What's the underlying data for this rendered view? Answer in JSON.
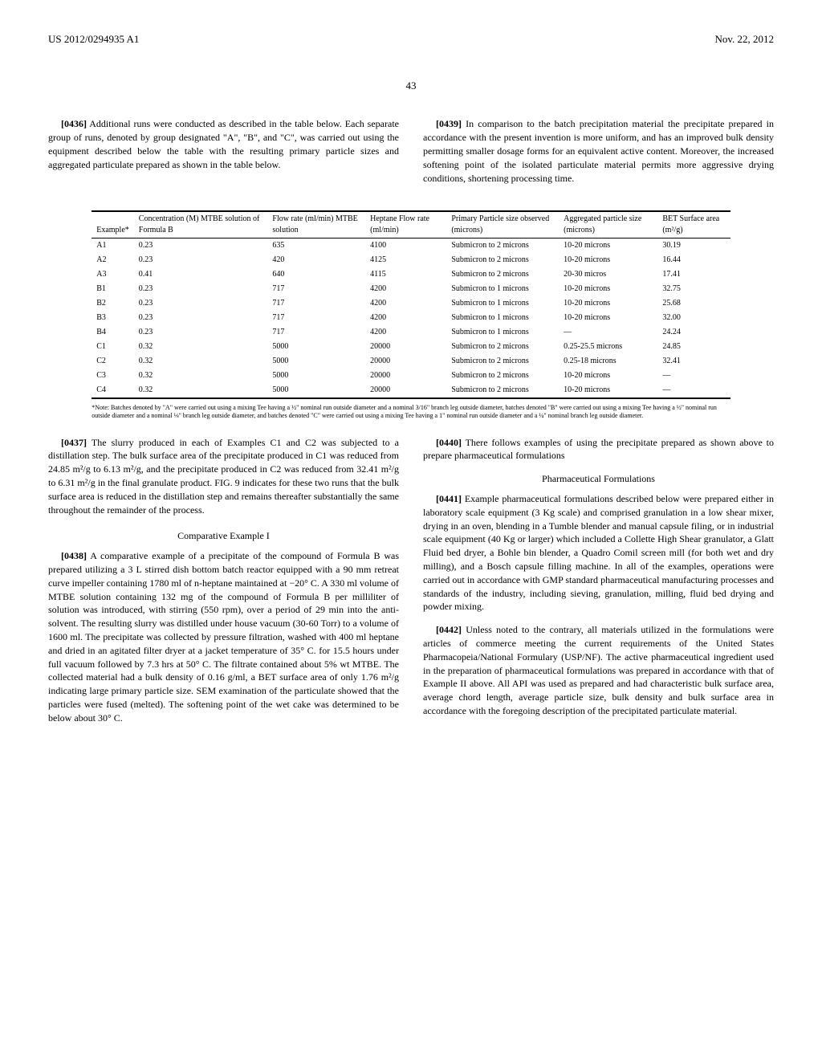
{
  "header": {
    "left": "US 2012/0294935 A1",
    "right": "Nov. 22, 2012"
  },
  "pageNumber": "43",
  "paragraphs": {
    "p0436": {
      "num": "[0436]",
      "text": "Additional runs were conducted as described in the table below. Each separate group of runs, denoted by group designated \"A\", \"B\", and \"C\", was carried out using the equipment described below the table with the resulting primary particle sizes and aggregated particulate prepared as shown in the table below."
    },
    "p0437": {
      "num": "[0437]",
      "text": "The slurry produced in each of Examples C1 and C2 was subjected to a distillation step. The bulk surface area of the precipitate produced in C1 was reduced from 24.85 m²/g to 6.13 m²/g, and the precipitate produced in C2 was reduced from 32.41 m²/g to 6.31 m²/g in the final granulate product. FIG. 9 indicates for these two runs that the bulk surface area is reduced in the distillation step and remains thereafter substantially the same throughout the remainder of the process."
    },
    "compExHeading": "Comparative Example I",
    "p0438": {
      "num": "[0438]",
      "text": "A comparative example of a precipitate of the compound of Formula B was prepared utilizing a 3 L stirred dish bottom batch reactor equipped with a 90 mm retreat curve impeller containing 1780 ml of n-heptane maintained at −20° C. A 330 ml volume of MTBE solution containing 132 mg of the compound of Formula B per milliliter of solution was introduced, with stirring (550 rpm), over a period of 29 min into the anti-solvent. The resulting slurry was distilled under house vacuum (30-60 Torr) to a volume of 1600 ml. The precipitate was collected by pressure filtration, washed with 400 ml heptane and dried in an agitated filter dryer at a jacket temperature of 35° C. for 15.5 hours under full vacuum followed by 7.3 hrs at 50° C. The filtrate contained about 5% wt MTBE. The collected material had a bulk density of 0.16 g/ml, a BET surface area of only 1.76 m²/g indicating large primary particle size. SEM examination of the particulate showed that the particles were fused (melted). The softening point of the wet cake was determined to be below about 30° C."
    },
    "p0439": {
      "num": "[0439]",
      "text": "In comparison to the batch precipitation material the precipitate prepared in accordance with the present invention is more uniform, and has an improved bulk density permitting smaller dosage forms for an equivalent active content. Moreover, the increased softening point of the isolated particulate material permits more aggressive drying conditions, shortening processing time."
    },
    "p0440": {
      "num": "[0440]",
      "text": "There follows examples of using the precipitate prepared as shown above to prepare pharmaceutical formulations"
    },
    "pharmHeading": "Pharmaceutical Formulations",
    "p0441": {
      "num": "[0441]",
      "text": "Example pharmaceutical formulations described below were prepared either in laboratory scale equipment (3 Kg scale) and comprised granulation in a low shear mixer, drying in an oven, blending in a Tumble blender and manual capsule filing, or in industrial scale equipment (40 Kg or larger) which included a Collette High Shear granulator, a Glatt Fluid bed dryer, a Bohle bin blender, a Quadro Comil screen mill (for both wet and dry milling), and a Bosch capsule filling machine. In all of the examples, operations were carried out in accordance with GMP standard pharmaceutical manufacturing processes and standards of the industry, including sieving, granulation, milling, fluid bed drying and powder mixing."
    },
    "p0442": {
      "num": "[0442]",
      "text": "Unless noted to the contrary, all materials utilized in the formulations were articles of commerce meeting the current requirements of the United States Pharmacopeia/National Formulary (USP/NF). The active pharmaceutical ingredient used in the preparation of pharmaceutical formulations was prepared in accordance with that of Example II above. All API was used as prepared and had characteristic bulk surface area, average chord length, average particle size, bulk density and bulk surface area in accordance with the foregoing description of the precipitated particulate material."
    }
  },
  "table": {
    "headers": [
      "Example*",
      "Concentration (M) MTBE solution of Formula B",
      "Flow rate (ml/min) MTBE solution",
      "Heptane Flow rate (ml/min)",
      "Primary Particle size observed (microns)",
      "Aggregated particle size (microns)",
      "BET Surface area (m²/g)"
    ],
    "rows": [
      [
        "A1",
        "0.23",
        "635",
        "4100",
        "Submicron to 2 microns",
        "10-20 microns",
        "30.19"
      ],
      [
        "A2",
        "0.23",
        "420",
        "4125",
        "Submicron to 2 microns",
        "10-20 microns",
        "16.44"
      ],
      [
        "A3",
        "0.41",
        "640",
        "4115",
        "Submicron to 2 microns",
        "20-30 micros",
        "17.41"
      ],
      [
        "B1",
        "0.23",
        "717",
        "4200",
        "Submicron to 1 microns",
        "10-20 microns",
        "32.75"
      ],
      [
        "B2",
        "0.23",
        "717",
        "4200",
        "Submicron to 1 microns",
        "10-20 microns",
        "25.68"
      ],
      [
        "B3",
        "0.23",
        "717",
        "4200",
        "Submicron to 1 microns",
        "10-20 microns",
        "32.00"
      ],
      [
        "B4",
        "0.23",
        "717",
        "4200",
        "Submicron to 1 microns",
        "—",
        "24.24"
      ],
      [
        "C1",
        "0.32",
        "5000",
        "20000",
        "Submicron to 2 microns",
        "0.25-25.5 microns",
        "24.85"
      ],
      [
        "C2",
        "0.32",
        "5000",
        "20000",
        "Submicron to 2 microns",
        "0.25-18 microns",
        "32.41"
      ],
      [
        "C3",
        "0.32",
        "5000",
        "20000",
        "Submicron to 2 microns",
        "10-20 microns",
        "—"
      ],
      [
        "C4",
        "0.32",
        "5000",
        "20000",
        "Submicron to 2 microns",
        "10-20 microns",
        "—"
      ]
    ],
    "footnote": "*Note: Batches denoted by \"A\" were carried out using a mixing Tee having a ½\" nominal run outside diameter and a nominal 3/16\" branch leg outside diameter, batches denoted \"B\" were carried out using a mixing Tee having a ½\" nominal run outside diameter and a nominal ⅛\" branch leg outside diameter, and batches denoted \"C\" were carried out using a mixing Tee having a 1\" nominal run outside diameter and a ¼\" nominal branch leg outside diameter."
  }
}
